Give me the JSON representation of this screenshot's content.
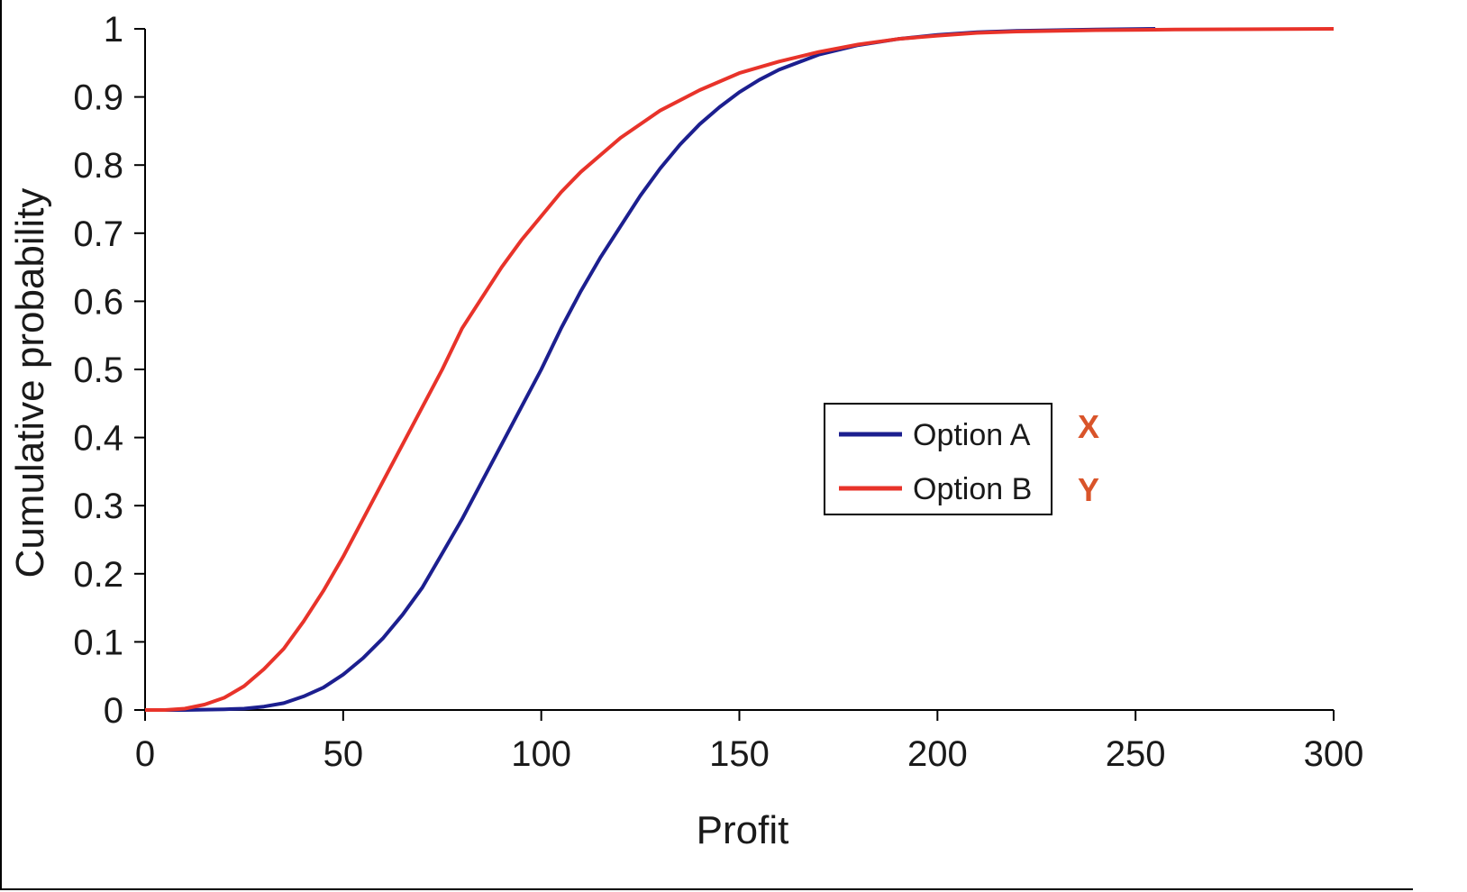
{
  "chart_data": {
    "type": "line",
    "title": "",
    "xlabel": "Profit",
    "ylabel": "Cumulative probability",
    "xlim": [
      0,
      300
    ],
    "ylim": [
      0,
      1
    ],
    "x_ticks": [
      "0",
      "50",
      "100",
      "150",
      "200",
      "250",
      "300"
    ],
    "y_ticks": [
      "0",
      "0.1",
      "0.2",
      "0.3",
      "0.4",
      "0.5",
      "0.6",
      "0.7",
      "0.8",
      "0.9",
      "1"
    ],
    "grid": false,
    "legend_position": "center-right",
    "series": [
      {
        "name": "Option A",
        "color": "#1c1f8f",
        "marker_label": "X",
        "x": [
          0,
          10,
          20,
          25,
          30,
          35,
          40,
          45,
          50,
          55,
          60,
          65,
          70,
          75,
          80,
          85,
          90,
          95,
          100,
          105,
          110,
          115,
          120,
          125,
          130,
          135,
          140,
          145,
          150,
          155,
          160,
          170,
          180,
          190,
          200,
          210,
          220,
          230,
          240,
          255
        ],
        "y": [
          0,
          0,
          0.001,
          0.002,
          0.005,
          0.01,
          0.02,
          0.033,
          0.052,
          0.076,
          0.105,
          0.14,
          0.18,
          0.23,
          0.28,
          0.335,
          0.39,
          0.445,
          0.5,
          0.56,
          0.615,
          0.665,
          0.71,
          0.755,
          0.795,
          0.83,
          0.86,
          0.885,
          0.907,
          0.925,
          0.94,
          0.962,
          0.976,
          0.985,
          0.991,
          0.995,
          0.997,
          0.998,
          0.999,
          1
        ]
      },
      {
        "name": "Option B",
        "color": "#e8332a",
        "marker_label": "Y",
        "x": [
          0,
          5,
          10,
          15,
          20,
          25,
          30,
          35,
          40,
          45,
          50,
          55,
          60,
          65,
          70,
          75,
          80,
          85,
          90,
          95,
          100,
          105,
          110,
          115,
          120,
          130,
          140,
          150,
          160,
          170,
          180,
          190,
          200,
          210,
          220,
          240,
          260,
          300
        ],
        "y": [
          0,
          0,
          0.002,
          0.008,
          0.018,
          0.035,
          0.06,
          0.09,
          0.13,
          0.175,
          0.225,
          0.28,
          0.335,
          0.39,
          0.445,
          0.5,
          0.56,
          0.605,
          0.65,
          0.69,
          0.725,
          0.76,
          0.79,
          0.815,
          0.84,
          0.88,
          0.91,
          0.935,
          0.952,
          0.966,
          0.977,
          0.985,
          0.99,
          0.994,
          0.996,
          0.998,
          0.999,
          1
        ]
      }
    ]
  }
}
